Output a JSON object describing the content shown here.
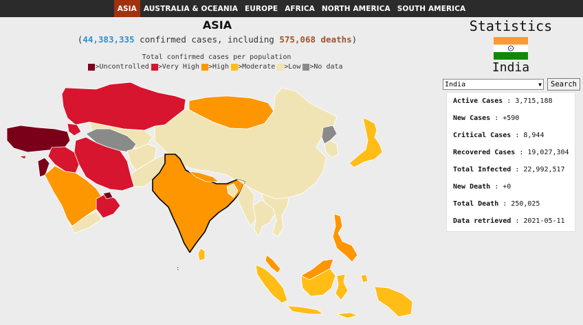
{
  "nav": {
    "tabs": [
      {
        "label": "ASIA",
        "active": true
      },
      {
        "label": "AUSTRALIA & OCEANIA",
        "active": false
      },
      {
        "label": "EUROPE",
        "active": false
      },
      {
        "label": "AFRICA",
        "active": false
      },
      {
        "label": "NORTH AMERICA",
        "active": false
      },
      {
        "label": "SOUTH AMERICA",
        "active": false
      }
    ]
  },
  "header": {
    "title": "ASIA",
    "open_paren": "(",
    "cases": "44,383,335",
    "mid_text": " confirmed cases, including ",
    "deaths": "575,068 deaths",
    "close_paren": ")"
  },
  "legend": {
    "title": "Total confirmed cases per population",
    "items": [
      {
        "label": ">Uncontrolled",
        "color": "#7a0019"
      },
      {
        "label": ">Very High",
        "color": "#d7152f"
      },
      {
        "label": ">High",
        "color": "#fd9600"
      },
      {
        "label": ">Moderate",
        "color": "#ffbd16"
      },
      {
        "label": ">Low",
        "color": "#f1e4b4"
      },
      {
        "label": ">No data",
        "color": "#8a8a8a"
      }
    ]
  },
  "map": {
    "caption": ":"
  },
  "stats": {
    "title": "Statistics",
    "flag_colors": [
      "#ff9933",
      "#ffffff",
      "#138808"
    ],
    "country": "India",
    "select_value": "India",
    "search_label": "Search",
    "rows": [
      {
        "label": "Active Cases",
        "value": "3,715,188"
      },
      {
        "label": "New Cases",
        "value": "+590"
      },
      {
        "label": "Critical Cases",
        "value": "8,944"
      },
      {
        "label": "Recovered Cases",
        "value": "19,027,304"
      },
      {
        "label": "Total Infected",
        "value": "22,992,517"
      },
      {
        "label": "New Death",
        "value": "+0"
      },
      {
        "label": "Total Death",
        "value": "250,025"
      },
      {
        "label": "Data retrieved",
        "value": "2021-05-11"
      }
    ]
  },
  "colors": {
    "uncontrolled": "#7a0019",
    "very_high": "#d7152f",
    "high": "#fd9600",
    "moderate": "#ffbd16",
    "low": "#f1e4b4",
    "no_data": "#8a8a8a",
    "nav_active": "#a2320e",
    "nav_bg": "#2b2b2b"
  }
}
